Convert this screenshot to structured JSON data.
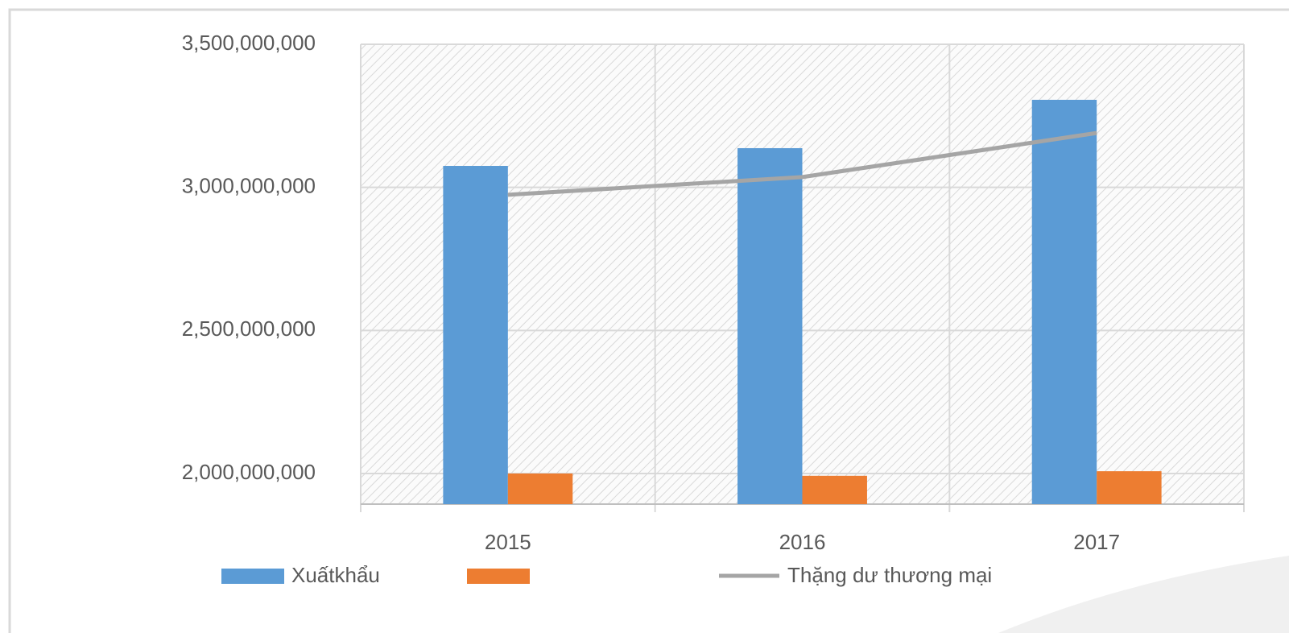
{
  "chart_data": {
    "type": "bar",
    "categories": [
      "2015",
      "2016",
      "2017"
    ],
    "series": [
      {
        "name": "Xuấtkhẩu",
        "type": "bar",
        "color": "#5b9bd5",
        "values": [
          3075000000,
          3137000000,
          3306000000
        ]
      },
      {
        "type": "bar",
        "color": "#ed7d31",
        "values": [
          2000000000,
          1992000000,
          2008000000
        ]
      },
      {
        "name": "Thặng dư thương mại",
        "type": "line",
        "color": "#a5a5a5",
        "values": [
          2974000000,
          3036000000,
          3190000000
        ]
      }
    ],
    "ylim": [
      1893000000,
      3500000000
    ],
    "yticks": [
      {
        "value": 2000000000,
        "label": "2,000,000,000"
      },
      {
        "value": 2500000000,
        "label": "2,500,000,000"
      },
      {
        "value": 3000000000,
        "label": "3,000,000,000"
      },
      {
        "value": 3500000000,
        "label": "3,500,000,000"
      }
    ],
    "grid": true,
    "legend": "bottom"
  }
}
